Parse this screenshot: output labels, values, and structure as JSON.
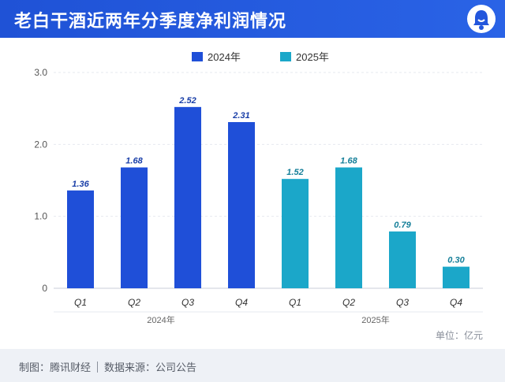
{
  "header": {
    "title": "老白干酒近两年分季度净利润情况"
  },
  "logo_icon": "bell-icon",
  "colors": {
    "header_bg": "#2356dc",
    "series_2024": "#1f4fd8",
    "series_2025": "#1ba7c9"
  },
  "footer": {
    "source_left": "制图：腾讯财经",
    "source_right": "数据来源：公司公告"
  },
  "chart_data": {
    "type": "bar",
    "title": "老白干酒近两年分季度净利润情况",
    "unit_label": "单位：亿元",
    "ylim": [
      0,
      3.0
    ],
    "yticks": [
      "0",
      "1.0",
      "2.0",
      "3.0"
    ],
    "legend_position": "top-center",
    "groups": [
      {
        "name": "2024年",
        "categories": [
          "Q1",
          "Q2",
          "Q3",
          "Q4"
        ]
      },
      {
        "name": "2025年",
        "categories": [
          "Q1",
          "Q2",
          "Q3",
          "Q4"
        ]
      }
    ],
    "series": [
      {
        "name": "2024年",
        "color": "#1f4fd8",
        "values": [
          1.36,
          1.68,
          2.52,
          2.31
        ],
        "labels": [
          "1.36",
          "1.68",
          "2.52",
          "2.31"
        ]
      },
      {
        "name": "2025年",
        "color": "#1ba7c9",
        "values": [
          1.52,
          1.68,
          0.79,
          0.3
        ],
        "labels": [
          "1.52",
          "1.68",
          "0.79",
          "0.30"
        ]
      }
    ]
  }
}
